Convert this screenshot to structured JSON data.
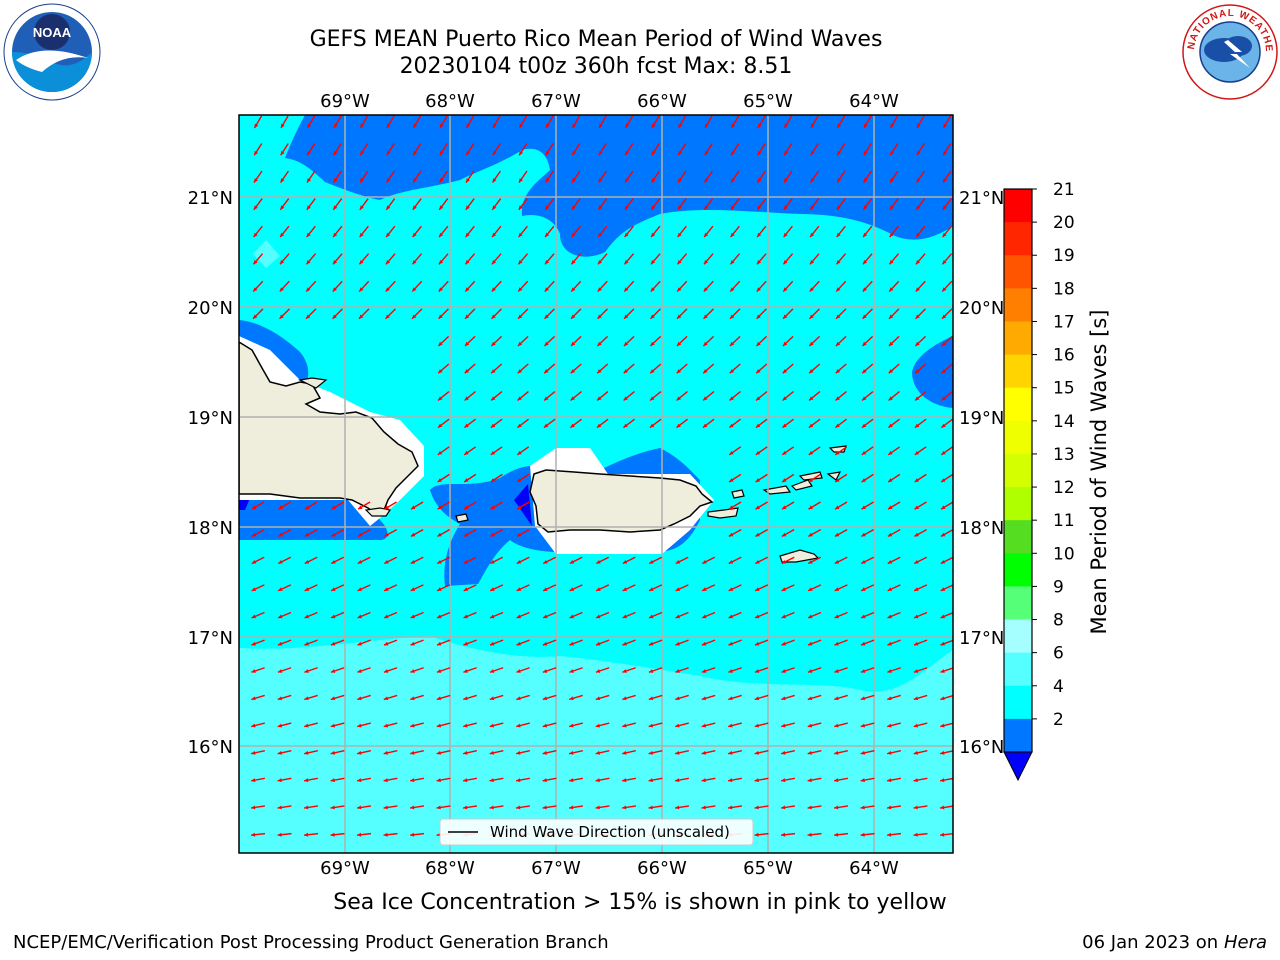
{
  "header": {
    "title_line1": "GEFS MEAN Puerto Rico Mean Period of Wind Waves",
    "title_line2": "20230104 t00z 360h fcst   Max: 8.51"
  },
  "logos": {
    "left": "NOAA",
    "right": "NATIONAL WEATHER SERVICE"
  },
  "map": {
    "lon_labels": [
      "69°W",
      "68°W",
      "67°W",
      "66°W",
      "65°W",
      "64°W"
    ],
    "lat_labels": [
      "21°N",
      "20°N",
      "19°N",
      "18°N",
      "17°N",
      "16°N"
    ],
    "legend": "Wind Wave Direction (unscaled)",
    "arrow_color": "#ff0000",
    "land_color": "#efeddc"
  },
  "colorbar": {
    "label": "Mean Period of Wind Waves [s]",
    "ticks": [
      "21",
      "20",
      "19",
      "18",
      "17",
      "16",
      "15",
      "14",
      "13",
      "12",
      "11",
      "10",
      "9",
      "8",
      "6",
      "4",
      "2"
    ],
    "colors": [
      "#ff0000",
      "#ff2600",
      "#ff5400",
      "#ff7f00",
      "#ffaa00",
      "#ffd400",
      "#ffff00",
      "#f0ff00",
      "#d4ff00",
      "#b0ff00",
      "#55dd22",
      "#00ff00",
      "#55ff77",
      "#a6ffff",
      "#55ffff",
      "#00ffff",
      "#0077ff"
    ],
    "under_color": "#0000ff"
  },
  "footer": {
    "note": "Sea Ice Concentration > 15% is shown in pink to yellow",
    "credit": "NCEP/EMC/Verification Post Processing Product Generation Branch",
    "date_prefix": "06 Jan 2023 on ",
    "machine": "Hera"
  }
}
